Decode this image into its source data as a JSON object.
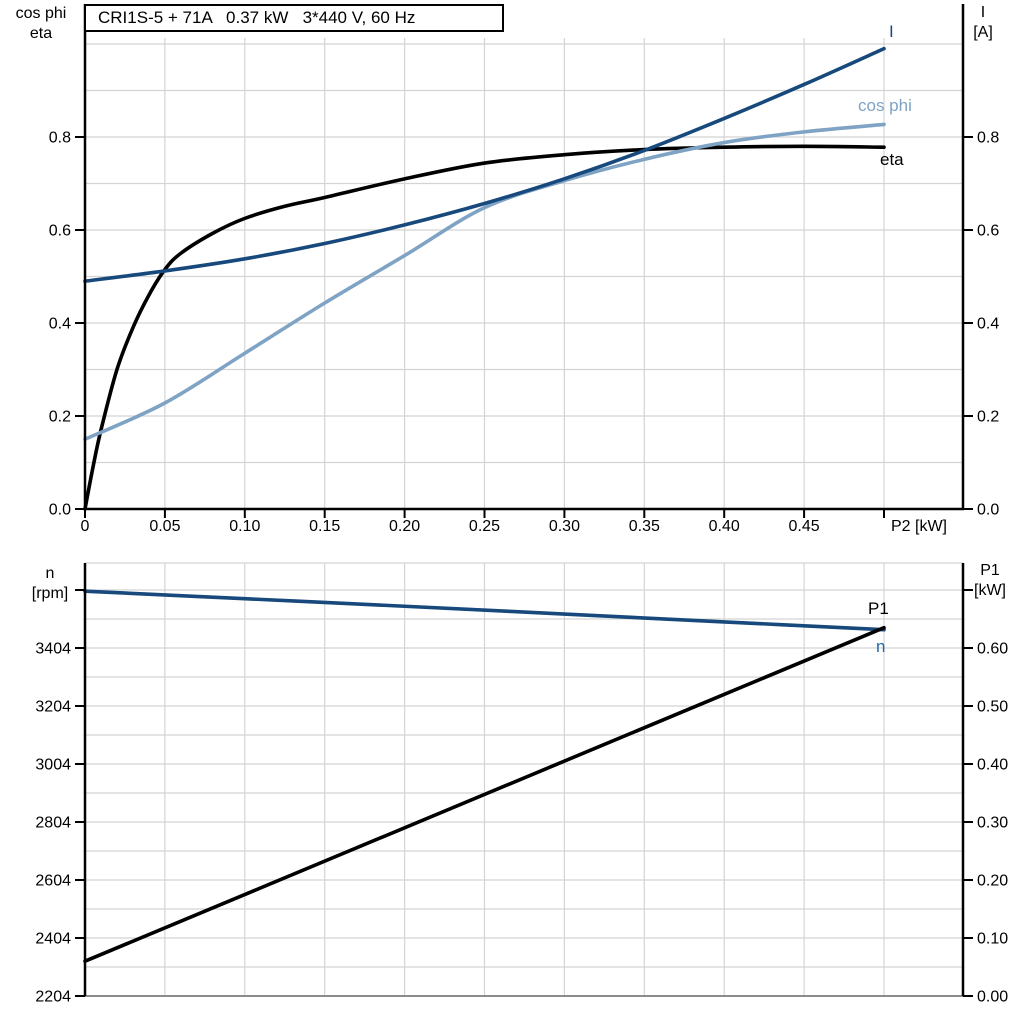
{
  "title": "CRI1S-5 + 71A   0.37 kW   3*440 V, 60 Hz",
  "colors": {
    "curve_dark_blue": "#17497C",
    "curve_light_blue": "#7FA3C4",
    "curve_black": "#000000",
    "n_label_blue": "#2767A8",
    "gridline": "#D4D4D4",
    "bottom_frame_gray": "#8C8C8C",
    "axis_black": "#000000"
  },
  "axis_corner_labels": {
    "top_left_1": "cos phi",
    "top_left_2": "eta",
    "top_right_1": "I",
    "top_right_2": "[A]",
    "bottom_left_1": "n",
    "bottom_left_2": "[rpm]",
    "bottom_right_1": "P1",
    "bottom_right_2": "[kW]"
  },
  "curve_labels": {
    "i": "I",
    "cos_phi": "cos phi",
    "eta": "eta",
    "p1": "P1",
    "n": "n"
  },
  "chart_data": [
    {
      "id": "motor-electrical-curves",
      "type": "line",
      "title": "CRI1S-5 + 71A   0.37 kW   3*440 V, 60 Hz",
      "xlabel": "P2 [kW]",
      "xlim": [
        0,
        0.55
      ],
      "x_grid_step": 0.05,
      "x_ticks": [
        0,
        0.05,
        0.1,
        0.15,
        0.2,
        0.25,
        0.3,
        0.35,
        0.4,
        0.45,
        0.5
      ],
      "x_tick_labels": [
        "0",
        "0.05",
        "0.10",
        "0.15",
        "0.20",
        "0.25",
        "0.30",
        "0.35",
        "0.40",
        "0.45",
        ""
      ],
      "ylabel_left": "cos phi / eta",
      "ylabel_right": "I [A]",
      "ylim": [
        0,
        1.02
      ],
      "y_grid_step": 0.1,
      "y_ticks": [
        0,
        0.2,
        0.4,
        0.6,
        0.8
      ],
      "y_tick_labels": [
        "0.0",
        "0.2",
        "0.4",
        "0.6",
        "0.8"
      ],
      "grid": true,
      "legend_position": "curve-end-labels",
      "series": [
        {
          "name": "eta",
          "color": "#000000",
          "x": [
            0,
            0.005,
            0.01,
            0.02,
            0.03,
            0.04,
            0.05,
            0.06,
            0.08,
            0.1,
            0.125,
            0.15,
            0.2,
            0.25,
            0.3,
            0.35,
            0.4,
            0.45,
            0.5
          ],
          "y": [
            0,
            0.09,
            0.17,
            0.3,
            0.39,
            0.46,
            0.515,
            0.55,
            0.593,
            0.625,
            0.651,
            0.67,
            0.71,
            0.744,
            0.762,
            0.773,
            0.778,
            0.78,
            0.778
          ]
        },
        {
          "name": "cos phi",
          "color": "#7FA3C4",
          "x": [
            0,
            0.05,
            0.1,
            0.15,
            0.2,
            0.25,
            0.3,
            0.35,
            0.4,
            0.45,
            0.5
          ],
          "y": [
            0.15,
            0.228,
            0.335,
            0.443,
            0.545,
            0.648,
            0.706,
            0.752,
            0.788,
            0.811,
            0.827
          ]
        },
        {
          "name": "I",
          "color": "#17497C",
          "x": [
            0,
            0.05,
            0.1,
            0.15,
            0.2,
            0.25,
            0.3,
            0.35,
            0.4,
            0.45,
            0.5
          ],
          "y": [
            0.49,
            0.512,
            0.538,
            0.571,
            0.611,
            0.657,
            0.71,
            0.771,
            0.84,
            0.913,
            0.99
          ]
        }
      ]
    },
    {
      "id": "speed-and-input-power-curves",
      "type": "line",
      "xlabel": "",
      "xlim": [
        0,
        0.55
      ],
      "x_grid_step": 0.05,
      "x_ticks": [],
      "ylabel_left": "n [rpm]",
      "ylim_left": [
        2204,
        3697
      ],
      "y_left_grid_step": 100,
      "y_left_ticks": [
        2204,
        2404,
        2604,
        2804,
        3004,
        3204,
        3404
      ],
      "y_left_tick_labels": [
        "2204",
        "2404",
        "2604",
        "2804",
        "3004",
        "3204",
        "3404"
      ],
      "y_left_extra_ticks": [
        3604
      ],
      "ylabel_right": "P1 [kW]",
      "ylim_right": [
        0,
        0.7466
      ],
      "y_right_ticks": [
        0,
        0.1,
        0.2,
        0.3,
        0.4,
        0.5,
        0.6
      ],
      "y_right_tick_labels": [
        "0.00",
        "0.10",
        "0.20",
        "0.30",
        "0.40",
        "0.50",
        "0.60"
      ],
      "y_right_extra_ticks": [
        0.7
      ],
      "grid": true,
      "series": [
        {
          "name": "n",
          "axis": "left",
          "color": "#17497C",
          "x": [
            0,
            0.1,
            0.2,
            0.3,
            0.4,
            0.5
          ],
          "y": [
            3600,
            3574,
            3548,
            3521,
            3494,
            3467
          ]
        },
        {
          "name": "P1",
          "axis": "right",
          "color": "#000000",
          "x": [
            0,
            0.5
          ],
          "y": [
            0.06,
            0.635
          ]
        }
      ]
    }
  ]
}
